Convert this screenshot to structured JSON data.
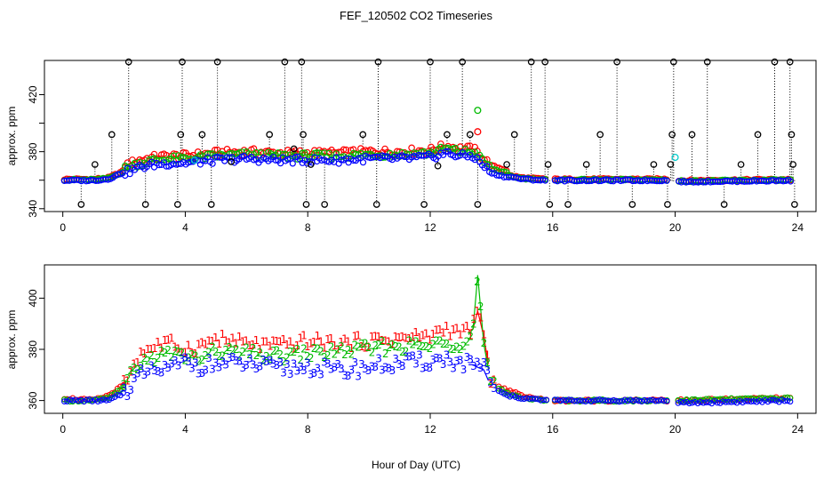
{
  "chart_data": [
    {
      "id": "top",
      "type": "scatter",
      "title": "FEF_120502  CO2 Timeseries",
      "xlabel": "",
      "ylabel": "approx. ppm",
      "xlim": [
        -0.6,
        24.6
      ],
      "ylim": [
        338,
        444
      ],
      "xticks": [
        0,
        4,
        8,
        12,
        16,
        20,
        24
      ],
      "yticks": [
        340,
        360,
        380,
        400,
        420
      ],
      "yticklabels": [
        "340",
        "",
        "380",
        "",
        "420"
      ],
      "reference_series": {
        "name": "reference (black)",
        "color": "#000000",
        "points": [
          [
            0.6,
            343
          ],
          [
            1.05,
            371
          ],
          [
            1.6,
            392
          ],
          [
            2.15,
            443
          ],
          [
            2.7,
            343
          ],
          [
            3.75,
            343
          ],
          [
            3.85,
            392
          ],
          [
            3.9,
            443
          ],
          [
            4.55,
            392
          ],
          [
            4.85,
            343
          ],
          [
            5.05,
            443
          ],
          [
            5.5,
            373
          ],
          [
            6.75,
            392
          ],
          [
            7.25,
            443
          ],
          [
            7.55,
            382
          ],
          [
            7.8,
            443
          ],
          [
            7.85,
            392
          ],
          [
            7.95,
            343
          ],
          [
            8.1,
            371
          ],
          [
            8.55,
            343
          ],
          [
            9.8,
            392
          ],
          [
            10.25,
            343
          ],
          [
            10.3,
            443
          ],
          [
            11.8,
            343
          ],
          [
            12.0,
            443
          ],
          [
            12.25,
            370
          ],
          [
            12.55,
            392
          ],
          [
            13.05,
            443
          ],
          [
            13.3,
            392
          ],
          [
            13.55,
            343
          ],
          [
            14.5,
            371
          ],
          [
            14.75,
            392
          ],
          [
            15.3,
            443
          ],
          [
            15.75,
            443
          ],
          [
            15.85,
            371
          ],
          [
            15.9,
            343
          ],
          [
            16.5,
            343
          ],
          [
            17.1,
            371
          ],
          [
            17.55,
            392
          ],
          [
            18.1,
            443
          ],
          [
            18.6,
            343
          ],
          [
            19.3,
            371
          ],
          [
            19.75,
            343
          ],
          [
            19.85,
            371
          ],
          [
            19.9,
            392
          ],
          [
            19.95,
            443
          ],
          [
            20.55,
            392
          ],
          [
            21.05,
            443
          ],
          [
            21.6,
            343
          ],
          [
            22.15,
            371
          ],
          [
            22.7,
            392
          ],
          [
            23.25,
            443
          ],
          [
            23.75,
            443
          ],
          [
            23.8,
            392
          ],
          [
            23.85,
            371
          ],
          [
            23.9,
            343
          ]
        ]
      },
      "series": [
        {
          "name": "1",
          "color": "#ff0000"
        },
        {
          "name": "2",
          "color": "#00bb00"
        },
        {
          "name": "3",
          "color": "#0000ff"
        }
      ],
      "outliers": [
        {
          "series": "2",
          "x": 13.55,
          "y": 409
        },
        {
          "series": "1",
          "x": 13.55,
          "y": 394
        },
        {
          "series": "cyan",
          "x": 20.0,
          "y": 376,
          "color": "#00cccc"
        },
        {
          "series": "cyan",
          "x": 4.3,
          "y": 374,
          "color": "#00cccc"
        }
      ],
      "profile": {
        "description": "Approximate series levels (ppm) vs hour; series 1 = base + 4, series 2 = base + 2, series 3 = base - 1",
        "x": [
          0,
          1,
          1.5,
          2,
          2.5,
          3,
          3.5,
          4,
          4.5,
          5,
          6,
          7,
          8,
          9,
          10,
          11,
          12,
          12.5,
          13,
          13.4,
          13.7,
          14,
          14.5,
          15,
          15.8,
          16,
          19.8,
          20,
          24
        ],
        "base": [
          360,
          360,
          361,
          366,
          370,
          372,
          373,
          373,
          374,
          375,
          376,
          375,
          375,
          375,
          376,
          376,
          377,
          380,
          378,
          378,
          372,
          366,
          363,
          361,
          360,
          360,
          360,
          359,
          360
        ],
        "gaps": [
          [
            15.8,
            16.0
          ],
          [
            19.8,
            20.05
          ]
        ]
      }
    },
    {
      "id": "bottom",
      "type": "scatter",
      "title": "",
      "xlabel": "Hour of Day (UTC)",
      "ylabel": "approx. ppm",
      "xlim": [
        -0.6,
        24.6
      ],
      "ylim": [
        355,
        413
      ],
      "xticks": [
        0,
        4,
        8,
        12,
        16,
        20,
        24
      ],
      "yticks": [
        360,
        380,
        400
      ],
      "yticklabels": [
        "360",
        "380",
        "400"
      ],
      "series": [
        {
          "name": "1",
          "color": "#ff0000",
          "label": "1"
        },
        {
          "name": "2",
          "color": "#00bb00",
          "label": "2"
        },
        {
          "name": "3",
          "color": "#0000ff",
          "label": "3"
        }
      ],
      "profile": {
        "description": "Approximate per-series levels (ppm) vs hour",
        "x": [
          0,
          1,
          1.5,
          2,
          2.5,
          3,
          3.5,
          4,
          4.5,
          5,
          6,
          7,
          8,
          9,
          10,
          11,
          12,
          12.5,
          13,
          13.4,
          13.55,
          13.75,
          14,
          14.5,
          15,
          15.8,
          16,
          19.8,
          20,
          24
        ],
        "s1": [
          361,
          360,
          362,
          366,
          378,
          381,
          382,
          380,
          381,
          384,
          382,
          381,
          383,
          382,
          383,
          384,
          385,
          388,
          386,
          388,
          395,
          385,
          367,
          364,
          362,
          360,
          360,
          360,
          360,
          361
        ],
        "s2": [
          360,
          360,
          361,
          365,
          374,
          377,
          378,
          377,
          376,
          379,
          378,
          377,
          378,
          379,
          380,
          381,
          381,
          382,
          382,
          388,
          409,
          382,
          366,
          363,
          361,
          360,
          360,
          360,
          360,
          361
        ],
        "s3": [
          360,
          360,
          360,
          363,
          369,
          371,
          372,
          375,
          373,
          374,
          374,
          372,
          373,
          371,
          373,
          374,
          375,
          376,
          374,
          374,
          373,
          372,
          365,
          362,
          361,
          360,
          360,
          360,
          359,
          360
        ],
        "gaps": [
          [
            15.8,
            16.0
          ],
          [
            19.8,
            20.05
          ]
        ]
      }
    }
  ]
}
